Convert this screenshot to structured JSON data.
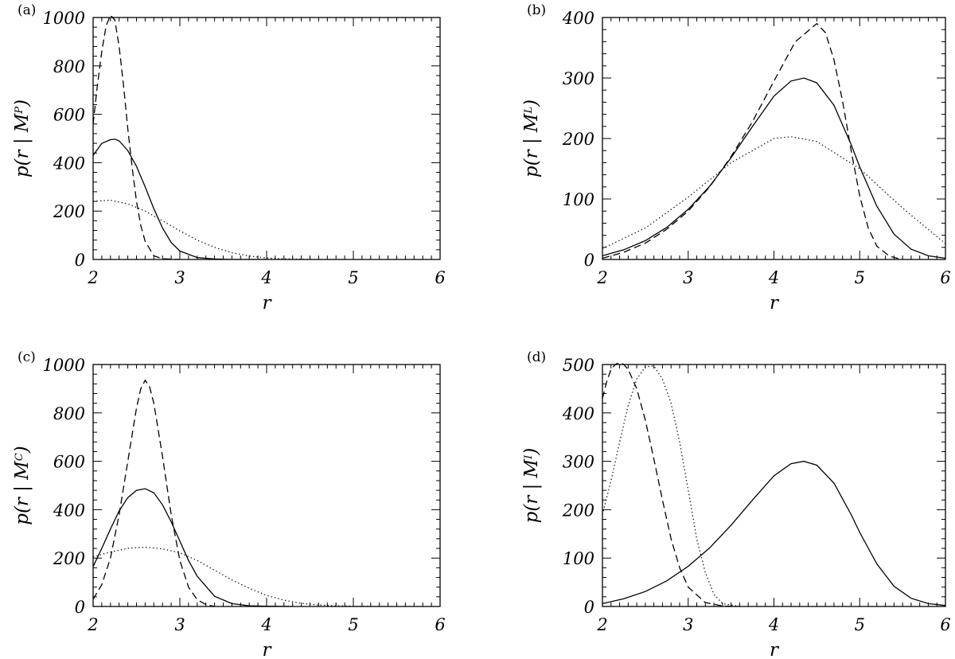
{
  "chart_data": [
    {
      "type": "line",
      "panel_label": "(a)",
      "xlabel": "r",
      "ylabel": "p(r | M^P)",
      "ylabel_main": "p(r | M",
      "ylabel_sup": "P",
      "ylabel_close": ")",
      "xlim": [
        2,
        6
      ],
      "ylim": [
        0,
        1000
      ],
      "xticks": [
        2,
        3,
        4,
        5,
        6
      ],
      "yticks": [
        0,
        200,
        400,
        600,
        800,
        1000
      ],
      "series": [
        {
          "style": "solid",
          "x": [
            2.0,
            2.1,
            2.2,
            2.25,
            2.3,
            2.4,
            2.5,
            2.6,
            2.7,
            2.8,
            2.9,
            3.0,
            3.2,
            3.4,
            3.6,
            4.0
          ],
          "y": [
            430,
            480,
            495,
            497,
            490,
            450,
            385,
            300,
            210,
            130,
            70,
            35,
            8,
            2,
            0,
            0
          ]
        },
        {
          "style": "dashed",
          "x": [
            2.0,
            2.05,
            2.1,
            2.15,
            2.2,
            2.25,
            2.3,
            2.35,
            2.4,
            2.45,
            2.5,
            2.55,
            2.6,
            2.7,
            2.8,
            3.0
          ],
          "y": [
            560,
            720,
            860,
            965,
            1010,
            990,
            880,
            720,
            540,
            380,
            240,
            140,
            75,
            15,
            3,
            0
          ]
        },
        {
          "style": "dotted",
          "x": [
            2.0,
            2.2,
            2.4,
            2.6,
            2.8,
            3.0,
            3.2,
            3.4,
            3.6,
            3.8,
            4.0,
            4.2,
            4.4,
            4.6,
            5.0
          ],
          "y": [
            240,
            245,
            230,
            200,
            160,
            118,
            80,
            50,
            28,
            14,
            6,
            2.5,
            1,
            0,
            0
          ]
        }
      ]
    },
    {
      "type": "line",
      "panel_label": "(b)",
      "xlabel": "r",
      "ylabel": "p(r | M^L)",
      "ylabel_main": "p(r | M",
      "ylabel_sup": "L",
      "ylabel_close": ")",
      "xlim": [
        2,
        6
      ],
      "ylim": [
        0,
        400
      ],
      "xticks": [
        2,
        3,
        4,
        5,
        6
      ],
      "yticks": [
        0,
        100,
        200,
        300,
        400
      ],
      "series": [
        {
          "style": "solid",
          "x": [
            2.0,
            2.25,
            2.5,
            2.75,
            3.0,
            3.25,
            3.5,
            3.75,
            4.0,
            4.2,
            4.35,
            4.5,
            4.7,
            4.9,
            5.0,
            5.2,
            5.4,
            5.6,
            5.8,
            6.0
          ],
          "y": [
            6,
            16,
            31,
            53,
            83,
            121,
            168,
            220,
            270,
            295,
            300,
            292,
            255,
            190,
            153,
            88,
            42,
            17,
            6,
            2
          ]
        },
        {
          "style": "dashed",
          "x": [
            2.0,
            2.25,
            2.5,
            2.75,
            3.0,
            3.25,
            3.5,
            3.75,
            4.0,
            4.25,
            4.5,
            4.6,
            4.7,
            4.8,
            4.9,
            5.0,
            5.1,
            5.2,
            5.35,
            5.5
          ],
          "y": [
            2,
            12,
            27,
            50,
            80,
            120,
            170,
            228,
            295,
            360,
            390,
            375,
            330,
            262,
            180,
            105,
            52,
            22,
            5,
            0
          ]
        },
        {
          "style": "dotted",
          "x": [
            2.0,
            2.5,
            3.0,
            3.5,
            4.0,
            4.2,
            4.5,
            5.0,
            5.5,
            6.0
          ],
          "y": [
            18,
            52,
            103,
            160,
            200,
            203,
            195,
            150,
            85,
            26
          ]
        }
      ]
    },
    {
      "type": "line",
      "panel_label": "(c)",
      "xlabel": "r",
      "ylabel": "p(r | M^C)",
      "ylabel_main": "p(r | M",
      "ylabel_sup": "C",
      "ylabel_close": ")",
      "xlim": [
        2,
        6
      ],
      "ylim": [
        0,
        1000
      ],
      "xticks": [
        2,
        3,
        4,
        5,
        6
      ],
      "yticks": [
        0,
        200,
        400,
        600,
        800,
        1000
      ],
      "series": [
        {
          "style": "solid",
          "x": [
            2.0,
            2.1,
            2.2,
            2.3,
            2.4,
            2.5,
            2.6,
            2.7,
            2.8,
            2.9,
            3.0,
            3.1,
            3.2,
            3.4,
            3.6,
            3.8,
            4.0,
            4.3
          ],
          "y": [
            165,
            240,
            320,
            395,
            450,
            480,
            487,
            470,
            420,
            350,
            270,
            190,
            125,
            42,
            12,
            3,
            1,
            0
          ]
        },
        {
          "style": "dashed",
          "x": [
            2.0,
            2.1,
            2.2,
            2.3,
            2.4,
            2.5,
            2.55,
            2.6,
            2.65,
            2.7,
            2.8,
            2.9,
            3.0,
            3.1,
            3.2,
            3.3,
            3.4
          ],
          "y": [
            30,
            90,
            200,
            380,
            600,
            820,
            900,
            935,
            910,
            840,
            620,
            380,
            190,
            80,
            28,
            8,
            0
          ]
        },
        {
          "style": "dotted",
          "x": [
            2.0,
            2.2,
            2.4,
            2.6,
            2.8,
            3.0,
            3.2,
            3.4,
            3.6,
            3.8,
            4.0,
            4.2,
            4.4,
            4.6,
            4.8,
            5.0,
            5.2,
            5.4
          ],
          "y": [
            205,
            225,
            240,
            245,
            238,
            222,
            190,
            150,
            110,
            75,
            46,
            26,
            13,
            6,
            3,
            1,
            0.5,
            0
          ]
        }
      ]
    },
    {
      "type": "line",
      "panel_label": "(d)",
      "xlabel": "r",
      "ylabel": "p(r | M^I)",
      "ylabel_main": "p(r | M",
      "ylabel_sup": "I",
      "ylabel_close": ")",
      "xlim": [
        2,
        6
      ],
      "ylim": [
        0,
        500
      ],
      "xticks": [
        2,
        3,
        4,
        5,
        6
      ],
      "yticks": [
        0,
        100,
        200,
        300,
        400,
        500
      ],
      "series": [
        {
          "style": "solid",
          "x": [
            2.0,
            2.25,
            2.5,
            2.75,
            3.0,
            3.25,
            3.5,
            3.75,
            4.0,
            4.2,
            4.35,
            4.5,
            4.7,
            4.9,
            5.0,
            5.2,
            5.4,
            5.6,
            5.8,
            6.0
          ],
          "y": [
            6,
            16,
            31,
            53,
            83,
            121,
            168,
            220,
            270,
            295,
            300,
            292,
            255,
            190,
            153,
            88,
            42,
            17,
            6,
            2
          ]
        },
        {
          "style": "dashed",
          "x": [
            2.0,
            2.05,
            2.1,
            2.15,
            2.2,
            2.25,
            2.3,
            2.4,
            2.5,
            2.6,
            2.7,
            2.8,
            2.9,
            3.0,
            3.2,
            3.4,
            3.6
          ],
          "y": [
            430,
            465,
            490,
            500,
            505,
            500,
            490,
            450,
            385,
            305,
            220,
            140,
            80,
            40,
            8,
            1,
            0
          ]
        },
        {
          "style": "dotted",
          "x": [
            2.0,
            2.1,
            2.2,
            2.3,
            2.4,
            2.5,
            2.6,
            2.7,
            2.8,
            2.9,
            3.0,
            3.1,
            3.2,
            3.3,
            3.4,
            3.6
          ],
          "y": [
            190,
            260,
            340,
            415,
            470,
            495,
            497,
            470,
            420,
            340,
            240,
            140,
            70,
            25,
            6,
            0
          ]
        }
      ]
    }
  ]
}
